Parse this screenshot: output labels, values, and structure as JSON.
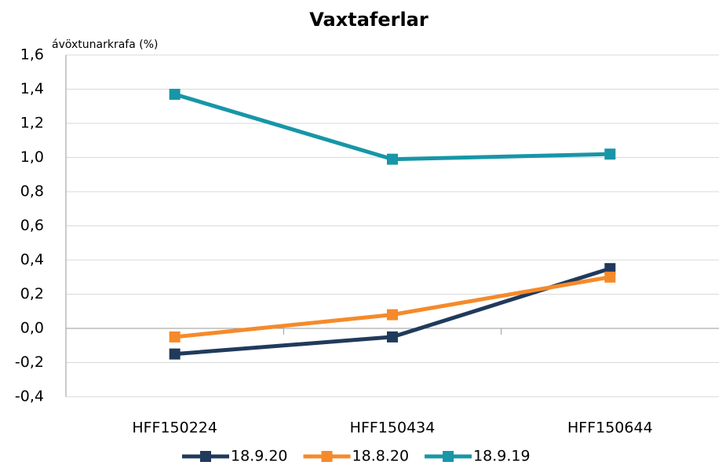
{
  "chart_data": {
    "type": "line",
    "title": "Vaxtaferlar",
    "y_label": "ávöxtunarkrafa (%)",
    "categories": [
      "HFF150224",
      "HFF150434",
      "HFF150644"
    ],
    "series": [
      {
        "name": "18.9.20",
        "color": "#203a5c",
        "values": [
          -0.15,
          -0.05,
          0.35
        ]
      },
      {
        "name": "18.8.20",
        "color": "#f58a2a",
        "values": [
          -0.05,
          0.08,
          0.3
        ]
      },
      {
        "name": "18.9.19",
        "color": "#1796a7",
        "values": [
          1.37,
          0.99,
          1.02
        ]
      }
    ],
    "ylim": [
      -0.4,
      1.6
    ],
    "yticks": [
      {
        "value": -0.4,
        "label": "-0,4"
      },
      {
        "value": -0.2,
        "label": "-0,2"
      },
      {
        "value": 0,
        "label": "0,0"
      },
      {
        "value": 0.2,
        "label": "0,2"
      },
      {
        "value": 0.4,
        "label": "0,4"
      },
      {
        "value": 0.6,
        "label": "0,6"
      },
      {
        "value": 0.8,
        "label": "0,8"
      },
      {
        "value": 1.0,
        "label": "1,0"
      },
      {
        "value": 1.2,
        "label": "1,2"
      },
      {
        "value": 1.4,
        "label": "1,4"
      },
      {
        "value": 1.6,
        "label": "1,6"
      }
    ],
    "grid": true
  }
}
